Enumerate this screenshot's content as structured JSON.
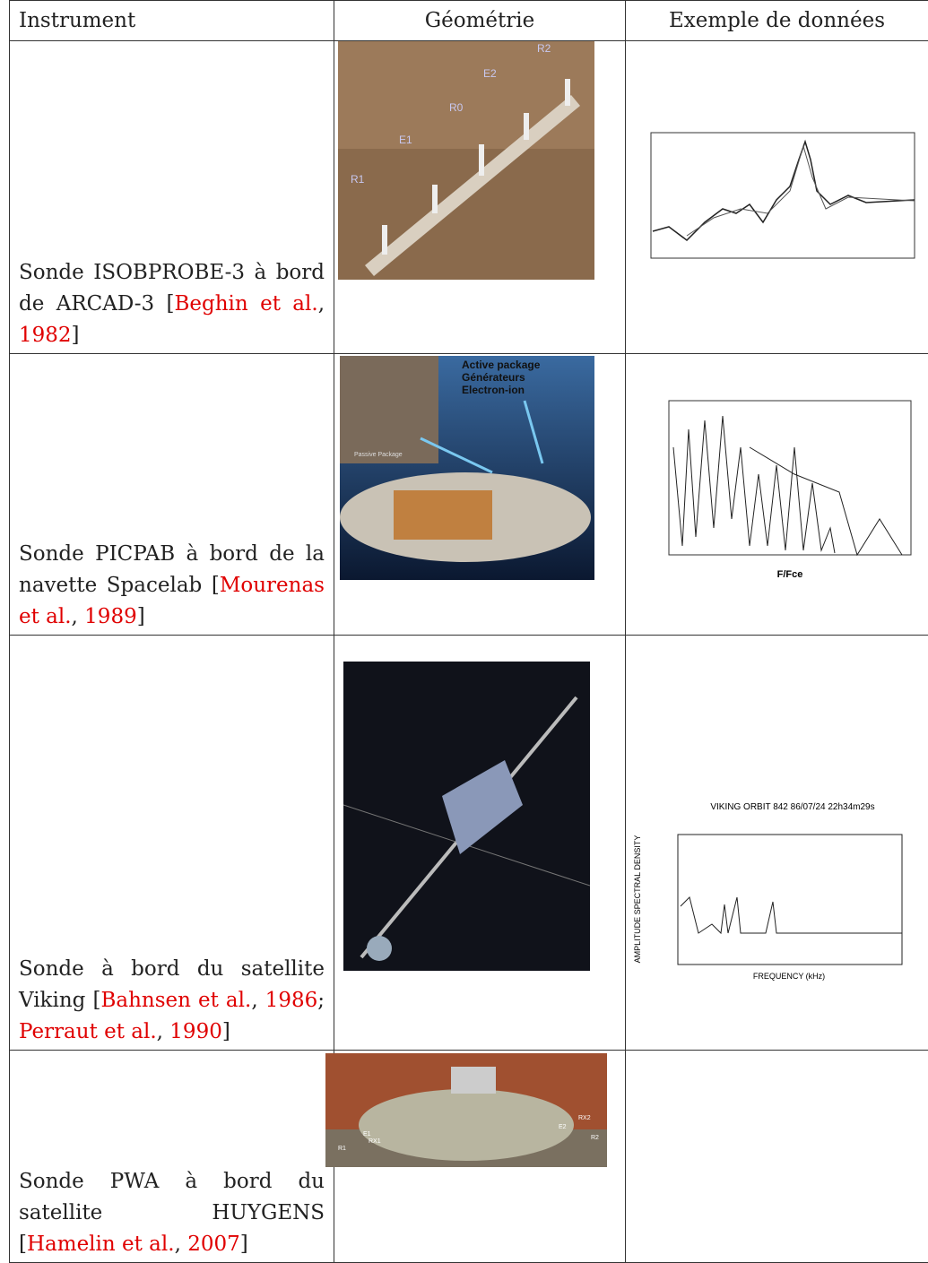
{
  "table": {
    "header": [
      "Instrument",
      "Géométrie",
      "Exemple de données"
    ],
    "rows": [
      {
        "instrument": [
          {
            "text": "Sonde ISOBPROBE-3 à bord de ARCAD-3 [",
            "link": false
          },
          {
            "text": "Beghin et al.",
            "link": true
          },
          {
            "text": ", ",
            "link": false
          },
          {
            "text": "1982",
            "link": true
          },
          {
            "text": "]",
            "link": false
          }
        ],
        "geometry_labels": [
          "R2",
          "E2",
          "R0",
          "E1",
          "R1"
        ]
      },
      {
        "instrument": [
          {
            "text": "Sonde PICPAB à bord de la navette Spacelab [",
            "link": false
          },
          {
            "text": "Mourenas et al.",
            "link": true
          },
          {
            "text": ", ",
            "link": false
          },
          {
            "text": "1989",
            "link": true
          },
          {
            "text": "]",
            "link": false
          }
        ],
        "geometry_labels": [
          "Active package",
          "Générateurs",
          "Electron-ion",
          "Passive Package"
        ],
        "data_labels": [
          "F/Fce"
        ]
      },
      {
        "instrument": [
          {
            "text": "Sonde à bord du satellite Viking [",
            "link": false
          },
          {
            "text": "Bahnsen et al.",
            "link": true
          },
          {
            "text": ", ",
            "link": false
          },
          {
            "text": "1986",
            "link": true
          },
          {
            "text": "; ",
            "link": false
          },
          {
            "text": "Perraut et al.",
            "link": true
          },
          {
            "text": ", ",
            "link": false
          },
          {
            "text": "1990",
            "link": true
          },
          {
            "text": "]",
            "link": false
          }
        ],
        "data_labels": [
          "VIKING  ORBIT 842  86/07/24  22h34m29s",
          "AMPLITUDE  SPECTRAL DENSITY",
          "FREQUENCY (kHz)"
        ]
      },
      {
        "instrument": [
          {
            "text": "Sonde PWA à bord du satellite HUYGENS [",
            "link": false
          },
          {
            "text": "Hamelin et al.",
            "link": true
          },
          {
            "text": ", ",
            "link": false
          },
          {
            "text": "2007",
            "link": true
          },
          {
            "text": "]",
            "link": false
          }
        ],
        "geometry_labels": [
          "E1",
          "RX1",
          "R1",
          "RX2",
          "E2",
          "R2"
        ]
      }
    ]
  }
}
